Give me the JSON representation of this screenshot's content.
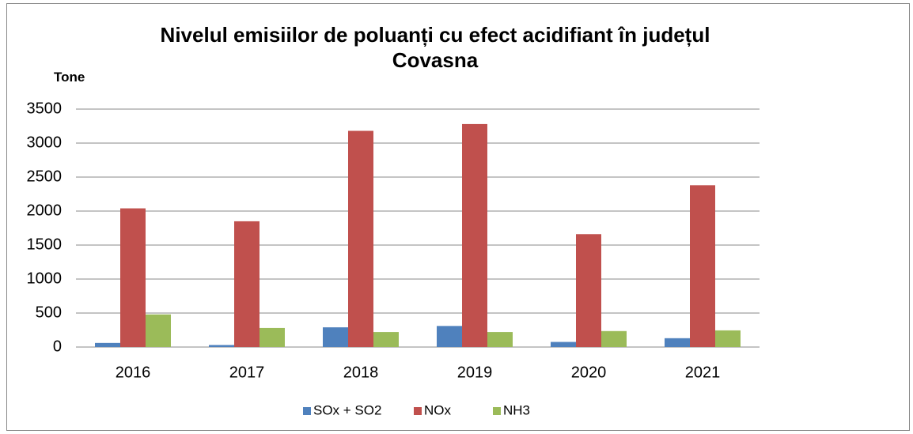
{
  "chart_data": {
    "type": "bar",
    "title": "Nivelul emisiilor de poluanți cu efect acidifiant în județul Covasna",
    "y_label": "Tone",
    "categories": [
      "2016",
      "2017",
      "2018",
      "2019",
      "2020",
      "2021"
    ],
    "series": [
      {
        "name": "SOx + SO2",
        "color": "#4f81bd",
        "values": [
          60,
          30,
          290,
          310,
          75,
          130
        ]
      },
      {
        "name": "NOx",
        "color": "#c0504d",
        "values": [
          2040,
          1850,
          3180,
          3280,
          1660,
          2380
        ]
      },
      {
        "name": "NH3",
        "color": "#9bbb59",
        "values": [
          480,
          280,
          220,
          220,
          235,
          245
        ]
      }
    ],
    "ylim": [
      0,
      3500
    ],
    "yticks": [
      0,
      500,
      1000,
      1500,
      2000,
      2500,
      3000,
      3500
    ],
    "grid": true,
    "legend": "bottom"
  }
}
